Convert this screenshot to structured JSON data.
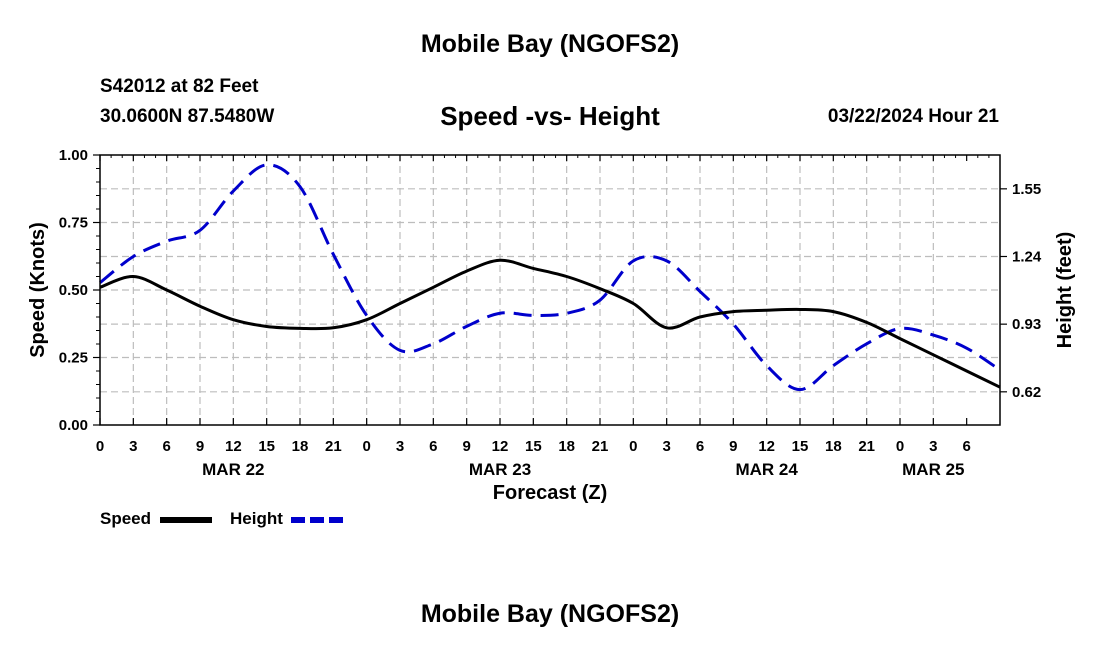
{
  "header": {
    "title": "Mobile Bay (NGOFS2)",
    "station": "S42012 at 82 Feet",
    "coords": "30.0600N  87.5480W",
    "subtitle": "Speed -vs- Height",
    "datetime": "03/22/2024 Hour 21"
  },
  "footer": {
    "title": "Mobile Bay (NGOFS2)"
  },
  "legend": {
    "speed_label": "Speed",
    "height_label": "Height"
  },
  "colors": {
    "speed": "#000000",
    "height": "#0000cc",
    "grid": "#bdbdbd"
  },
  "chart_data": {
    "type": "line",
    "title": "Speed -vs- Height",
    "xlabel": "Forecast (Z)",
    "ylabel": "Speed (Knots)",
    "y2label": "Height (feet)",
    "x_hours_range": [
      0,
      81
    ],
    "ylim": [
      0,
      1.0
    ],
    "y2lim": [
      0.468,
      1.705
    ],
    "yticks": [
      "0.00",
      "0.25",
      "0.50",
      "0.75",
      "1.00"
    ],
    "y2ticks": [
      "0.62",
      "0.93",
      "1.24",
      "1.55"
    ],
    "xtick_labels": [
      "0",
      "3",
      "6",
      "9",
      "12",
      "15",
      "18",
      "21",
      "0",
      "3",
      "6",
      "9",
      "12",
      "15",
      "18",
      "21",
      "0",
      "3",
      "6",
      "9",
      "12",
      "15",
      "18",
      "21",
      "0",
      "3",
      "6"
    ],
    "date_labels": [
      {
        "label": "MAR 22",
        "hour": 12
      },
      {
        "label": "MAR 23",
        "hour": 36
      },
      {
        "label": "MAR 24",
        "hour": 60
      },
      {
        "label": "MAR 25",
        "hour": 75
      }
    ],
    "series": [
      {
        "name": "Speed",
        "axis": "left",
        "style": "solid",
        "x": [
          0,
          3,
          6,
          9,
          12,
          15,
          18,
          21,
          24,
          27,
          30,
          33,
          36,
          39,
          42,
          45,
          48,
          51,
          54,
          57,
          60,
          63,
          66,
          69,
          72,
          75,
          78,
          81
        ],
        "values": [
          0.51,
          0.55,
          0.5,
          0.44,
          0.39,
          0.365,
          0.358,
          0.36,
          0.39,
          0.45,
          0.51,
          0.57,
          0.61,
          0.58,
          0.55,
          0.505,
          0.45,
          0.36,
          0.4,
          0.42,
          0.425,
          0.428,
          0.42,
          0.38,
          0.32,
          0.26,
          0.2,
          0.14
        ]
      },
      {
        "name": "Height",
        "axis": "right",
        "style": "dashed",
        "x": [
          0,
          3,
          6,
          9,
          12,
          15,
          18,
          21,
          24,
          27,
          30,
          33,
          36,
          39,
          42,
          45,
          48,
          51,
          54,
          57,
          60,
          63,
          66,
          69,
          72,
          75,
          78,
          81
        ],
        "values": [
          1.12,
          1.24,
          1.31,
          1.36,
          1.54,
          1.66,
          1.56,
          1.25,
          0.97,
          0.81,
          0.84,
          0.92,
          0.98,
          0.97,
          0.98,
          1.04,
          1.22,
          1.22,
          1.08,
          0.93,
          0.74,
          0.63,
          0.74,
          0.84,
          0.91,
          0.88,
          0.82,
          0.72
        ]
      }
    ]
  }
}
